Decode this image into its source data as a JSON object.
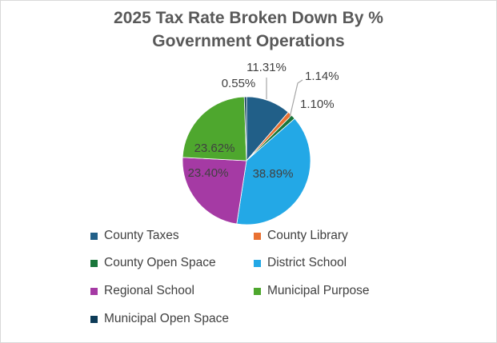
{
  "chart_data": {
    "type": "pie",
    "title_lines": [
      "2025 Tax Rate Broken Down By %",
      "Government Operations"
    ],
    "slices": [
      {
        "name": "County Taxes",
        "value": 11.31,
        "label": "11.31%",
        "color": "#215f88"
      },
      {
        "name": "County Library",
        "value": 1.14,
        "label": "1.14%",
        "color": "#e97132"
      },
      {
        "name": "County Open Space",
        "value": 1.1,
        "label": "1.10%",
        "color": "#19763a"
      },
      {
        "name": "District School",
        "value": 38.89,
        "label": "38.89%",
        "color": "#23a8e6"
      },
      {
        "name": "Regional School",
        "value": 23.4,
        "label": "23.40%",
        "color": "#a53aa4"
      },
      {
        "name": "Municipal Purpose",
        "value": 23.62,
        "label": "23.62%",
        "color": "#4ea72e"
      },
      {
        "name": "Municipal Open Space",
        "value": 0.55,
        "label": "0.55%",
        "color": "#0d3b57"
      }
    ],
    "legend_position": "bottom"
  }
}
